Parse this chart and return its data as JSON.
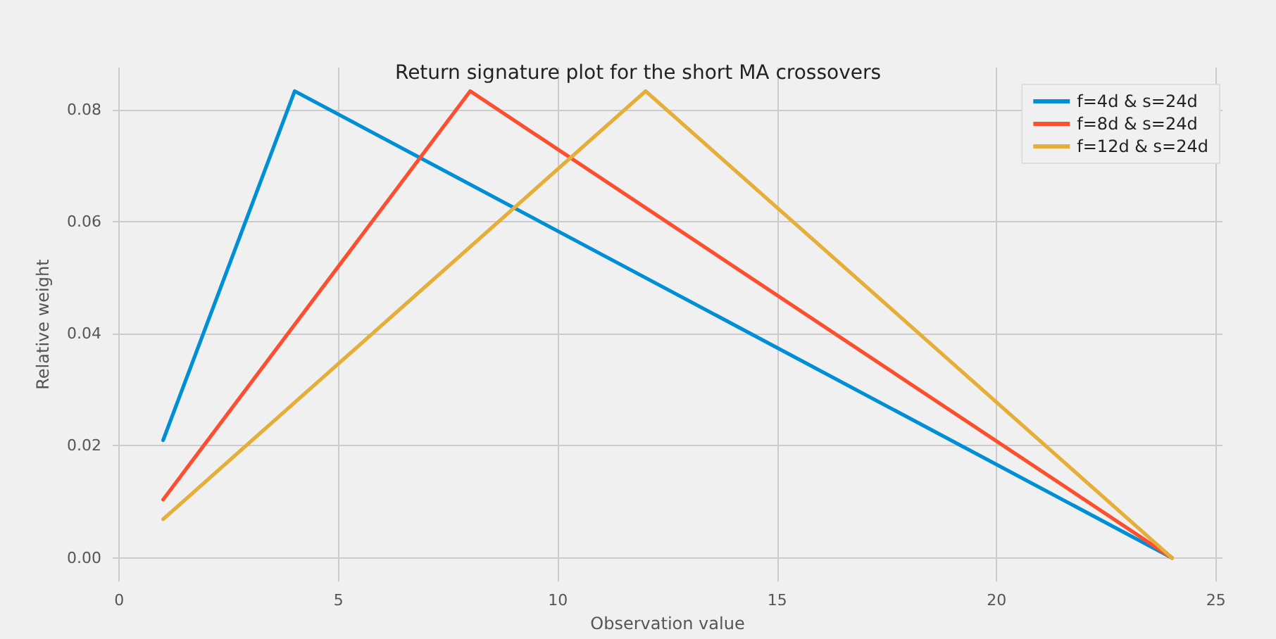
{
  "chart_data": {
    "type": "line",
    "title": "Return signature plot for the short MA crossovers",
    "xlabel": "Observation value",
    "ylabel": "Relative weight",
    "series": [
      {
        "name": "f=4d & s=24d",
        "color": "#008fd5",
        "x": [
          1,
          4,
          24
        ],
        "values": [
          0.021,
          0.0833,
          0
        ]
      },
      {
        "name": "f=8d & s=24d",
        "color": "#fc4f30",
        "x": [
          1,
          8,
          24
        ],
        "values": [
          0.0104,
          0.0833,
          0
        ]
      },
      {
        "name": "f=12d & s=24d",
        "color": "#e5ae38",
        "x": [
          1,
          12,
          24
        ],
        "values": [
          0.0069,
          0.0833,
          0
        ]
      }
    ],
    "xlim": [
      -0.15,
      25.15
    ],
    "xticks": [
      0,
      5,
      10,
      15,
      20,
      25
    ],
    "ylim": [
      -0.0042,
      0.0875
    ],
    "yticks": [
      {
        "value": 0,
        "label": "0.00"
      },
      {
        "value": 0.02,
        "label": "0.02"
      },
      {
        "value": 0.04,
        "label": "0.04"
      },
      {
        "value": 0.06,
        "label": "0.06"
      },
      {
        "value": 0.08,
        "label": "0.08"
      }
    ],
    "grid": true,
    "legend": "top right",
    "marker": "none",
    "line_style": "solid"
  }
}
